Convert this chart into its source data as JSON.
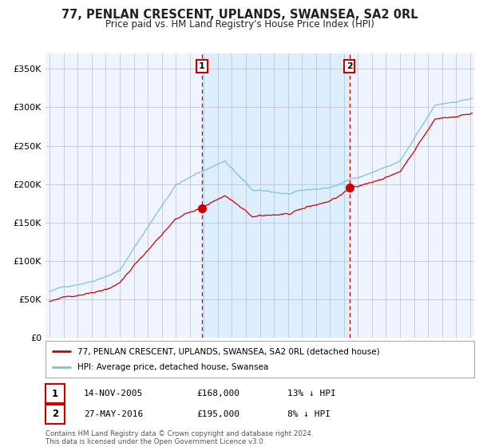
{
  "title": "77, PENLAN CRESCENT, UPLANDS, SWANSEA, SA2 0RL",
  "subtitle": "Price paid vs. HM Land Registry's House Price Index (HPI)",
  "sale1_date": "14-NOV-2005",
  "sale1_price": 168000,
  "sale1_label": "13% ↓ HPI",
  "sale2_date": "27-MAY-2016",
  "sale2_price": 195000,
  "sale2_label": "8% ↓ HPI",
  "sale1_x": 2005.87,
  "sale2_x": 2016.4,
  "legend_line1": "77, PENLAN CRESCENT, UPLANDS, SWANSEA, SA2 0RL (detached house)",
  "legend_line2": "HPI: Average price, detached house, Swansea",
  "footer": "Contains HM Land Registry data © Crown copyright and database right 2024.\nThis data is licensed under the Open Government Licence v3.0.",
  "hpi_color": "#7fbfdf",
  "price_color": "#cc0000",
  "dot_color": "#cc0000",
  "vline_color": "#cc0000",
  "shade_color": "#ddeeff",
  "background_color": "#f0f4ff",
  "grid_color": "#bbbbcc",
  "ylim": [
    0,
    370000
  ],
  "xlim": [
    1994.7,
    2025.3
  ],
  "yticks": [
    0,
    50000,
    100000,
    150000,
    200000,
    250000,
    300000,
    350000
  ],
  "xticks": [
    1995,
    1996,
    1997,
    1998,
    1999,
    2000,
    2001,
    2002,
    2003,
    2004,
    2005,
    2006,
    2007,
    2008,
    2009,
    2010,
    2011,
    2012,
    2013,
    2014,
    2015,
    2016,
    2017,
    2018,
    2019,
    2020,
    2021,
    2022,
    2023,
    2024,
    2025
  ]
}
